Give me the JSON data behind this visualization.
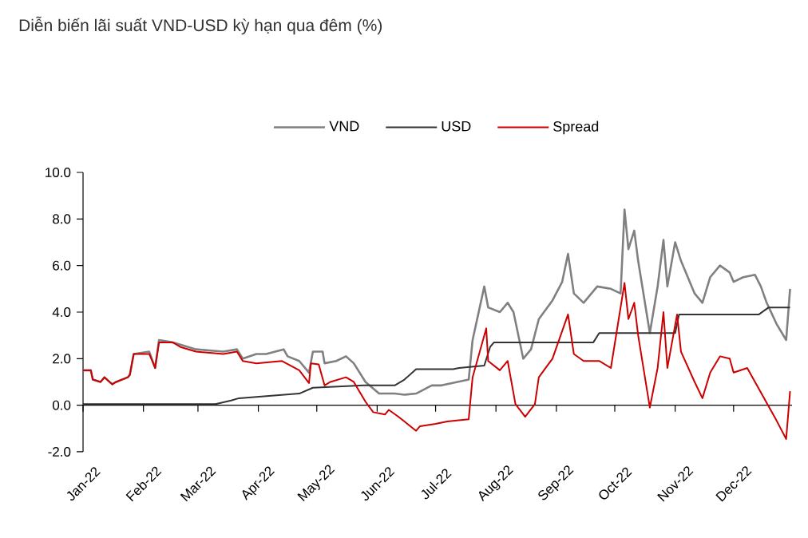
{
  "chart_data": {
    "type": "line",
    "title": "Diễn biến lãi suất VND-USD kỳ hạn qua đêm (%)",
    "xlim": [
      "2022-01-01",
      "2022-12-31"
    ],
    "xticks": [
      {
        "value": "2022-01-01",
        "label": "Jan-22"
      },
      {
        "value": "2022-02-01",
        "label": "Feb-22"
      },
      {
        "value": "2022-03-01",
        "label": "Mar-22"
      },
      {
        "value": "2022-04-01",
        "label": "Apr-22"
      },
      {
        "value": "2022-05-01",
        "label": "May-22"
      },
      {
        "value": "2022-06-01",
        "label": "Jun-22"
      },
      {
        "value": "2022-07-01",
        "label": "Jul-22"
      },
      {
        "value": "2022-08-01",
        "label": "Aug-22"
      },
      {
        "value": "2022-09-01",
        "label": "Sep-22"
      },
      {
        "value": "2022-10-01",
        "label": "Oct-22"
      },
      {
        "value": "2022-11-01",
        "label": "Nov-22"
      },
      {
        "value": "2022-12-01",
        "label": "Dec-22"
      }
    ],
    "ylim": [
      -2,
      10
    ],
    "yticks": [
      {
        "value": -2,
        "label": "-2.0"
      },
      {
        "value": 0,
        "label": "0.0"
      },
      {
        "value": 2,
        "label": "2.0"
      },
      {
        "value": 4,
        "label": "4.0"
      },
      {
        "value": 6,
        "label": "6.0"
      },
      {
        "value": 8,
        "label": "8.0"
      },
      {
        "value": 10,
        "label": "10.0"
      }
    ],
    "legend": "top",
    "series": [
      {
        "name": "VND",
        "color": "#808080",
        "x": [
          "2022-01-01",
          "2022-01-05",
          "2022-01-06",
          "2022-01-10",
          "2022-01-12",
          "2022-01-16",
          "2022-01-18",
          "2022-01-24",
          "2022-01-25",
          "2022-01-27",
          "2022-02-04",
          "2022-02-07",
          "2022-02-09",
          "2022-02-16",
          "2022-02-20",
          "2022-02-28",
          "2022-03-14",
          "2022-03-21",
          "2022-03-24",
          "2022-03-31",
          "2022-04-05",
          "2022-04-14",
          "2022-04-16",
          "2022-04-22",
          "2022-04-27",
          "2022-04-29",
          "2022-05-04",
          "2022-05-05",
          "2022-05-11",
          "2022-05-16",
          "2022-05-20",
          "2022-05-26",
          "2022-06-02",
          "2022-06-10",
          "2022-06-15",
          "2022-06-21",
          "2022-06-29",
          "2022-07-04",
          "2022-07-18",
          "2022-07-20",
          "2022-07-26",
          "2022-07-28",
          "2022-08-03",
          "2022-08-07",
          "2022-08-10",
          "2022-08-15",
          "2022-08-19",
          "2022-08-23",
          "2022-08-30",
          "2022-09-04",
          "2022-09-07",
          "2022-09-10",
          "2022-09-15",
          "2022-09-22",
          "2022-09-29",
          "2022-10-04",
          "2022-10-06",
          "2022-10-08",
          "2022-10-11",
          "2022-10-13",
          "2022-10-19",
          "2022-10-23",
          "2022-10-26",
          "2022-10-28",
          "2022-11-01",
          "2022-11-04",
          "2022-11-11",
          "2022-11-15",
          "2022-11-19",
          "2022-11-24",
          "2022-11-29",
          "2022-12-01",
          "2022-12-06",
          "2022-12-12",
          "2022-12-15",
          "2022-12-18",
          "2022-12-23",
          "2022-12-28",
          "2022-12-30"
        ],
        "values": [
          1.5,
          1.5,
          1.1,
          1.0,
          1.2,
          0.9,
          1.0,
          1.2,
          1.3,
          2.2,
          2.3,
          1.6,
          2.8,
          2.7,
          2.6,
          2.4,
          2.3,
          2.4,
          2.0,
          2.2,
          2.2,
          2.4,
          2.1,
          1.9,
          1.4,
          2.3,
          2.3,
          1.8,
          1.9,
          2.1,
          1.8,
          1.0,
          0.5,
          0.5,
          0.45,
          0.5,
          0.85,
          0.85,
          1.1,
          2.8,
          5.1,
          4.2,
          4.0,
          4.4,
          4.0,
          2.0,
          2.4,
          3.7,
          4.5,
          5.3,
          6.5,
          4.8,
          4.4,
          5.1,
          5.0,
          4.8,
          8.4,
          6.7,
          7.5,
          6.2,
          3.1,
          5.1,
          7.1,
          5.1,
          7.0,
          6.2,
          4.8,
          4.4,
          5.5,
          6.0,
          5.7,
          5.3,
          5.5,
          5.6,
          5.1,
          4.4,
          3.5,
          2.8,
          5.0
        ]
      },
      {
        "name": "USD",
        "color": "#333333",
        "x": [
          "2022-01-01",
          "2022-03-10",
          "2022-03-18",
          "2022-03-22",
          "2022-04-22",
          "2022-04-29",
          "2022-05-25",
          "2022-06-10",
          "2022-06-15",
          "2022-06-21",
          "2022-07-10",
          "2022-07-13",
          "2022-07-26",
          "2022-07-29",
          "2022-07-31",
          "2022-09-20",
          "2022-09-23",
          "2022-11-01",
          "2022-11-03",
          "2022-12-14",
          "2022-12-19",
          "2022-12-30"
        ],
        "values": [
          0.05,
          0.05,
          0.2,
          0.3,
          0.5,
          0.75,
          0.85,
          0.85,
          1.1,
          1.55,
          1.55,
          1.6,
          1.7,
          2.5,
          2.7,
          2.7,
          3.1,
          3.1,
          3.9,
          3.9,
          4.2,
          4.2
        ]
      },
      {
        "name": "Spread",
        "color": "#cc0000",
        "x": [
          "2022-01-01",
          "2022-01-05",
          "2022-01-06",
          "2022-01-10",
          "2022-01-12",
          "2022-01-16",
          "2022-01-18",
          "2022-01-24",
          "2022-01-25",
          "2022-01-27",
          "2022-02-04",
          "2022-02-07",
          "2022-02-09",
          "2022-02-16",
          "2022-02-20",
          "2022-02-28",
          "2022-03-14",
          "2022-03-21",
          "2022-03-24",
          "2022-03-31",
          "2022-04-13",
          "2022-04-22",
          "2022-04-27",
          "2022-04-28",
          "2022-05-02",
          "2022-05-05",
          "2022-05-08",
          "2022-05-16",
          "2022-05-20",
          "2022-05-26",
          "2022-05-30",
          "2022-06-05",
          "2022-06-07",
          "2022-06-12",
          "2022-06-21",
          "2022-06-23",
          "2022-07-01",
          "2022-07-07",
          "2022-07-18",
          "2022-07-20",
          "2022-07-27",
          "2022-07-28",
          "2022-08-03",
          "2022-08-07",
          "2022-08-11",
          "2022-08-16",
          "2022-08-21",
          "2022-08-23",
          "2022-08-30",
          "2022-09-07",
          "2022-09-10",
          "2022-09-15",
          "2022-09-23",
          "2022-09-29",
          "2022-10-06",
          "2022-10-08",
          "2022-10-11",
          "2022-10-13",
          "2022-10-19",
          "2022-10-23",
          "2022-10-26",
          "2022-10-28",
          "2022-11-02",
          "2022-11-04",
          "2022-11-11",
          "2022-11-15",
          "2022-11-19",
          "2022-11-24",
          "2022-11-29",
          "2022-12-01",
          "2022-12-08",
          "2022-12-16",
          "2022-12-23",
          "2022-12-28",
          "2022-12-30"
        ],
        "values": [
          1.5,
          1.5,
          1.1,
          1.0,
          1.2,
          0.9,
          1.0,
          1.2,
          1.3,
          2.2,
          2.2,
          1.6,
          2.7,
          2.7,
          2.5,
          2.3,
          2.2,
          2.3,
          1.9,
          1.8,
          1.9,
          1.5,
          0.95,
          1.8,
          1.75,
          0.85,
          1.0,
          1.2,
          1.0,
          0.15,
          -0.3,
          -0.4,
          -0.2,
          -0.5,
          -1.1,
          -0.9,
          -0.8,
          -0.7,
          -0.6,
          1.2,
          3.3,
          1.9,
          1.5,
          1.9,
          0.05,
          -0.5,
          0.05,
          1.2,
          2.0,
          3.9,
          2.2,
          1.9,
          1.9,
          1.6,
          5.25,
          3.7,
          4.4,
          3.0,
          -0.1,
          1.6,
          4.0,
          1.6,
          3.9,
          2.3,
          1.0,
          0.3,
          1.4,
          2.1,
          2.0,
          1.4,
          1.6,
          0.4,
          -0.65,
          -1.45,
          0.6
        ]
      }
    ]
  }
}
